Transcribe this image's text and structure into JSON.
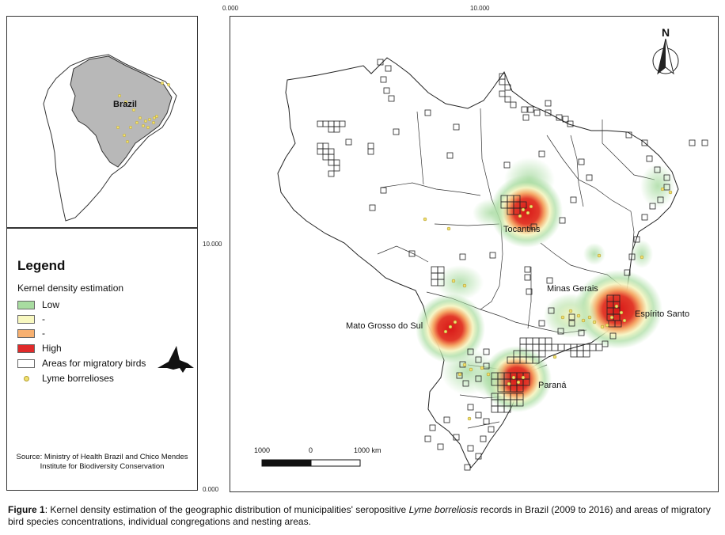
{
  "coordinates": {
    "top_left": "0.000",
    "top_mid": "10.000",
    "left_mid": "10.000",
    "left_bottom": "0.000"
  },
  "inset": {
    "label": "Brazil"
  },
  "legend": {
    "title": "Legend",
    "subtitle": "Kernel density estimation",
    "items": [
      {
        "label": "Low",
        "color": "#a8dca0"
      },
      {
        "label": "-",
        "color": "#f8f8c0"
      },
      {
        "label": "-",
        "color": "#f7b070"
      },
      {
        "label": "High",
        "color": "#e02a2a"
      },
      {
        "label": "Areas for migratory birds",
        "color": "#ffffff"
      },
      {
        "label": "Lyme borrelioses",
        "color": "#f0e070"
      }
    ],
    "source": "Source: Ministry of Health Brazil and Chico Mendes Institute for Biodiversity Conservation"
  },
  "map": {
    "north": "N",
    "places": [
      "Tocantins",
      "Minas Gerais",
      "Espírito Santo",
      "Mato Grosso do Sul",
      "Paraná"
    ],
    "scale": {
      "left": "1000",
      "mid": "0",
      "right": "1000 km"
    }
  },
  "caption": {
    "label": "Figure 1",
    "text_before": ": Kernel density estimation of the geographic distribution of municipalities' seropositive ",
    "italic": "Lyme borreliosis",
    "text_after": " records in Brazil (2009 to 2016) and areas of migratory bird species concentrations, individual congregations and nesting areas."
  }
}
